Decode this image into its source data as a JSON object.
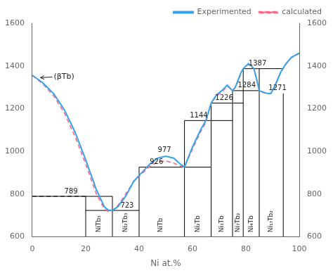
{
  "chart_data": {
    "type": "line",
    "xlabel": "Ni at.%",
    "xlim": [
      0,
      100
    ],
    "ylim": [
      600,
      1600
    ],
    "xticks": [
      0,
      20,
      40,
      60,
      80,
      100
    ],
    "yticks": [
      600,
      800,
      1000,
      1200,
      1400,
      1600
    ],
    "y2lim": [
      600,
      1600
    ],
    "y2ticks": [
      600,
      800,
      1000,
      1200,
      1400,
      1600
    ],
    "grid": false,
    "legend": "upper right",
    "series": [
      {
        "name": "calculated",
        "color": "#ff6384",
        "line_style": "dashed",
        "x": [
          0,
          4,
          8,
          12,
          16,
          20,
          24,
          27,
          28.5,
          30,
          32,
          35,
          38,
          41,
          44,
          47,
          50,
          53,
          55,
          57,
          60,
          63,
          65,
          67,
          69,
          71,
          73,
          75,
          76,
          77,
          78,
          79,
          80,
          81,
          82,
          83,
          84,
          85,
          86,
          88,
          89.4,
          91,
          93,
          95,
          97,
          100
        ],
        "values": [
          1356,
          1315,
          1260,
          1180,
          1070,
          940,
          800,
          730,
          718,
          723,
          745,
          800,
          858,
          895,
          930,
          950,
          955,
          945,
          932,
          926,
          1010,
          1090,
          1135,
          1226,
          1260,
          1278,
          1305,
          1284,
          1298,
          1325,
          1360,
          1387,
          1398,
          1408,
          1398,
          1387,
          1340,
          1284,
          1278,
          1268,
          1271,
          1308,
          1368,
          1408,
          1438,
          1458
        ]
      },
      {
        "name": "Experimented",
        "color": "#36a2eb",
        "line_style": "solid",
        "x": [
          0,
          4,
          8,
          12,
          16,
          20,
          24,
          27,
          28.5,
          30,
          32,
          35,
          38,
          41,
          44,
          47,
          50,
          53,
          55,
          57,
          60,
          63,
          65,
          67,
          69,
          71,
          73,
          75,
          76,
          77,
          78,
          79,
          80,
          81,
          82,
          83,
          84,
          85,
          86,
          88,
          89.4,
          91,
          93,
          95,
          97,
          100
        ],
        "values": [
          1356,
          1320,
          1270,
          1195,
          1090,
          960,
          820,
          740,
          725,
          723,
          740,
          790,
          860,
          900,
          940,
          968,
          977,
          968,
          945,
          926,
          1020,
          1100,
          1144,
          1226,
          1265,
          1284,
          1310,
          1284,
          1300,
          1330,
          1365,
          1387,
          1400,
          1410,
          1400,
          1387,
          1340,
          1284,
          1280,
          1271,
          1271,
          1310,
          1370,
          1410,
          1440,
          1460
        ]
      }
    ],
    "boundaries": [
      {
        "x": [
          20,
          20
        ],
        "values": [
          600,
          789
        ],
        "color": "#000000",
        "line_style": "solid"
      },
      {
        "x": [
          30,
          30
        ],
        "values": [
          600,
          789
        ],
        "color": "#000000",
        "line_style": "solid"
      },
      {
        "x": [
          40,
          40
        ],
        "values": [
          600,
          926
        ],
        "color": "#000000",
        "line_style": "solid"
      },
      {
        "x": [
          57,
          57
        ],
        "values": [
          600,
          1144
        ],
        "color": "#000000",
        "line_style": "solid"
      },
      {
        "x": [
          67,
          67
        ],
        "values": [
          600,
          1226
        ],
        "color": "#000000",
        "line_style": "solid"
      },
      {
        "x": [
          75,
          75
        ],
        "values": [
          600,
          1284
        ],
        "color": "#000000",
        "line_style": "solid"
      },
      {
        "x": [
          79,
          79
        ],
        "values": [
          600,
          1387
        ],
        "color": "#000000",
        "line_style": "solid"
      },
      {
        "x": [
          85,
          85
        ],
        "values": [
          600,
          1387
        ],
        "color": "#000000",
        "line_style": "solid"
      },
      {
        "x": [
          94,
          94
        ],
        "values": [
          600,
          1271
        ],
        "color": "#000000",
        "line_style": "solid"
      },
      {
        "x": [
          0,
          30
        ],
        "values": [
          789,
          789
        ],
        "color": "#000000",
        "line_style": "solid"
      },
      {
        "x": [
          20,
          40
        ],
        "values": [
          723,
          723
        ],
        "color": "#000000",
        "line_style": "solid"
      },
      {
        "x": [
          40,
          67
        ],
        "values": [
          926,
          926
        ],
        "color": "#000000",
        "line_style": "solid"
      },
      {
        "x": [
          57,
          75
        ],
        "values": [
          1144,
          1144
        ],
        "color": "#000000",
        "line_style": "solid"
      },
      {
        "x": [
          67,
          79
        ],
        "values": [
          1226,
          1226
        ],
        "color": "#000000",
        "line_style": "solid"
      },
      {
        "x": [
          75,
          85
        ],
        "values": [
          1284,
          1284
        ],
        "color": "#000000",
        "line_style": "solid"
      },
      {
        "x": [
          79,
          94
        ],
        "values": [
          1387,
          1387
        ],
        "color": "#000000",
        "line_style": "solid"
      },
      {
        "x": [
          0,
          20
        ],
        "values": [
          789,
          789
        ],
        "color": "#000000",
        "line_style": "dashed"
      }
    ],
    "compound_labels": [
      {
        "text": "NiTb₃",
        "x": 25,
        "y": 620
      },
      {
        "text": "Ni₂Tb₃",
        "x": 35,
        "y": 620
      },
      {
        "text": "NiTb",
        "x": 48,
        "y": 620
      },
      {
        "text": "Ni₂Tb",
        "x": 62,
        "y": 620
      },
      {
        "text": "Ni₃Tb",
        "x": 71,
        "y": 620
      },
      {
        "text": "Ni₇Tb₂",
        "x": 77,
        "y": 620
      },
      {
        "text": "Ni₄Tb",
        "x": 82,
        "y": 620
      },
      {
        "text": "Ni₁₇Tb₂",
        "x": 89.5,
        "y": 620
      }
    ],
    "temperature_labels": [
      {
        "text": "789",
        "x": 12,
        "y": 796
      },
      {
        "text": "723",
        "x": 33,
        "y": 730
      },
      {
        "text": "926",
        "x": 44,
        "y": 933
      },
      {
        "text": "977",
        "x": 47,
        "y": 990
      },
      {
        "text": "1144",
        "x": 59,
        "y": 1151
      },
      {
        "text": "1226",
        "x": 68.5,
        "y": 1233
      },
      {
        "text": "1284",
        "x": 77,
        "y": 1291
      },
      {
        "text": "1387",
        "x": 81,
        "y": 1394
      },
      {
        "text": "1271",
        "x": 88.5,
        "y": 1278
      }
    ],
    "arrow_annotation": {
      "text": "(βTb)",
      "x": 8,
      "y": 1348,
      "arrow_x": 3,
      "arrow_y": 1345
    }
  }
}
